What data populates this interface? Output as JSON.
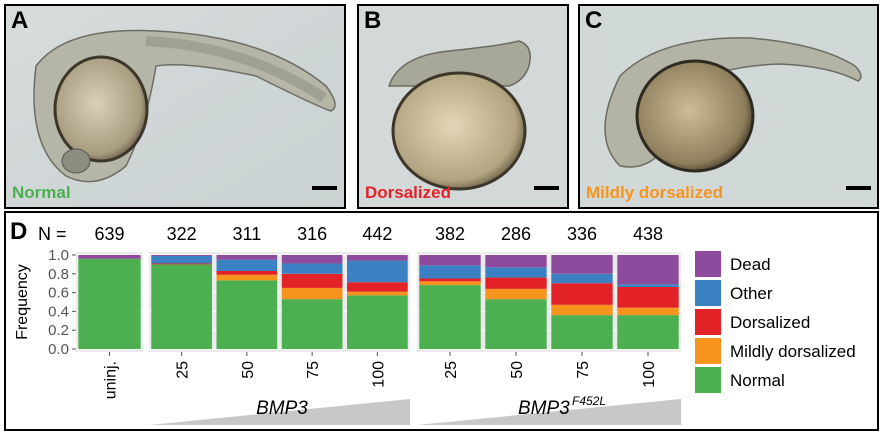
{
  "panels": [
    {
      "letter": "A",
      "caption": "Normal",
      "caption_color": "#4caf50"
    },
    {
      "letter": "B",
      "caption": "Dorsalized",
      "caption_color": "#e32227"
    },
    {
      "letter": "C",
      "caption": "Mildly dorsalized",
      "caption_color": "#f7941d"
    }
  ],
  "panel_d": {
    "letter": "D",
    "n_prefix": "N =",
    "ylabel": "Frequency",
    "yticks": [
      "1.0",
      "0.8",
      "0.6",
      "0.4",
      "0.2",
      "0.0"
    ],
    "group_labels": [
      "BMP3",
      "BMP3"
    ],
    "group2_superscript": "F452L"
  },
  "chart_data": {
    "type": "bar",
    "stacked": true,
    "ylim": [
      0,
      1
    ],
    "ylabel": "Frequency",
    "categories": [
      "uninj.",
      "25",
      "50",
      "75",
      "100",
      "25",
      "50",
      "75",
      "100"
    ],
    "groups": [
      {
        "label": "",
        "categories": [
          "uninj."
        ]
      },
      {
        "label": "BMP3",
        "categories": [
          "25",
          "50",
          "75",
          "100"
        ]
      },
      {
        "label": "BMP3F452L",
        "categories": [
          "25",
          "50",
          "75",
          "100"
        ]
      }
    ],
    "n": [
      639,
      322,
      311,
      316,
      442,
      382,
      286,
      336,
      438
    ],
    "series": [
      {
        "name": "Normal",
        "color": "#4caf50",
        "values": [
          0.96,
          0.9,
          0.73,
          0.53,
          0.57,
          0.68,
          0.53,
          0.36,
          0.36
        ]
      },
      {
        "name": "Mildly dorsalized",
        "color": "#f7941d",
        "values": [
          0.0,
          0.0,
          0.06,
          0.12,
          0.04,
          0.04,
          0.11,
          0.11,
          0.08
        ]
      },
      {
        "name": "Dorsalized",
        "color": "#e32227",
        "values": [
          0.0,
          0.01,
          0.04,
          0.15,
          0.1,
          0.03,
          0.12,
          0.23,
          0.22
        ]
      },
      {
        "name": "Other",
        "color": "#3a80c3",
        "values": [
          0.0,
          0.08,
          0.12,
          0.11,
          0.23,
          0.14,
          0.11,
          0.1,
          0.03
        ]
      },
      {
        "name": "Dead",
        "color": "#8e4a9d",
        "values": [
          0.04,
          0.01,
          0.05,
          0.09,
          0.06,
          0.11,
          0.13,
          0.2,
          0.31
        ]
      }
    ],
    "legend": [
      "Dead",
      "Other",
      "Dorsalized",
      "Mildly dorsalized",
      "Normal"
    ],
    "legend_position": "right"
  }
}
